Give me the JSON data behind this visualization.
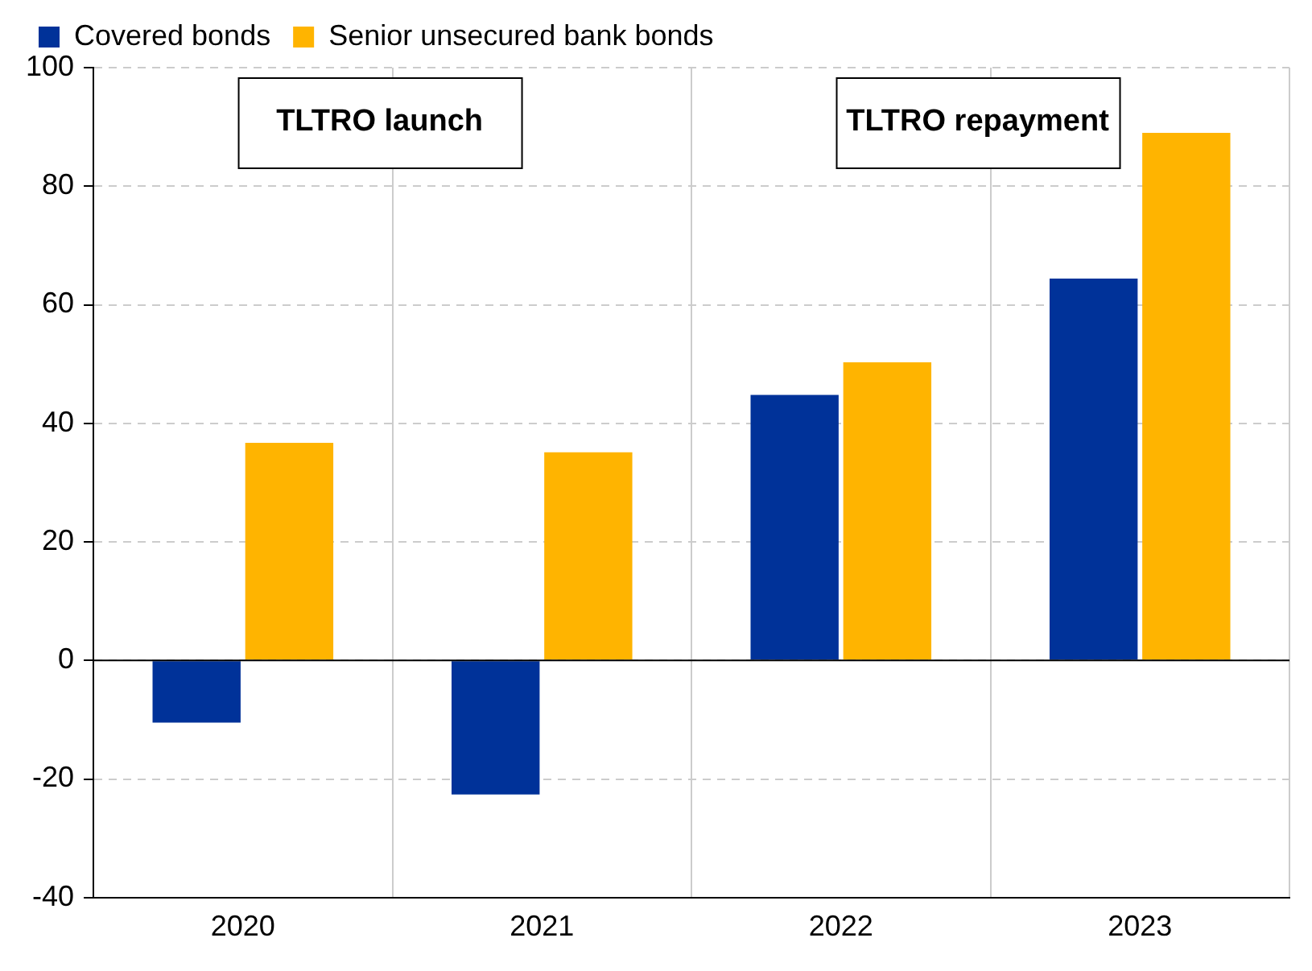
{
  "chart_data": {
    "type": "bar",
    "categories": [
      "2020",
      "2021",
      "2022",
      "2023"
    ],
    "series": [
      {
        "name": "Covered bonds",
        "color": "#003299",
        "values": [
          -10.5,
          -22.6,
          44.8,
          64.4
        ]
      },
      {
        "name": "Senior unsecured bank bonds",
        "color": "#ffb400",
        "values": [
          36.7,
          35.1,
          50.3,
          89
        ]
      }
    ],
    "ylim": [
      -40,
      100
    ],
    "yticks": [
      -40,
      -20,
      0,
      20,
      40,
      60,
      80,
      100
    ],
    "grid": true,
    "legend": "top",
    "annotations": [
      "TLTRO launch",
      "TLTRO repayment"
    ]
  }
}
